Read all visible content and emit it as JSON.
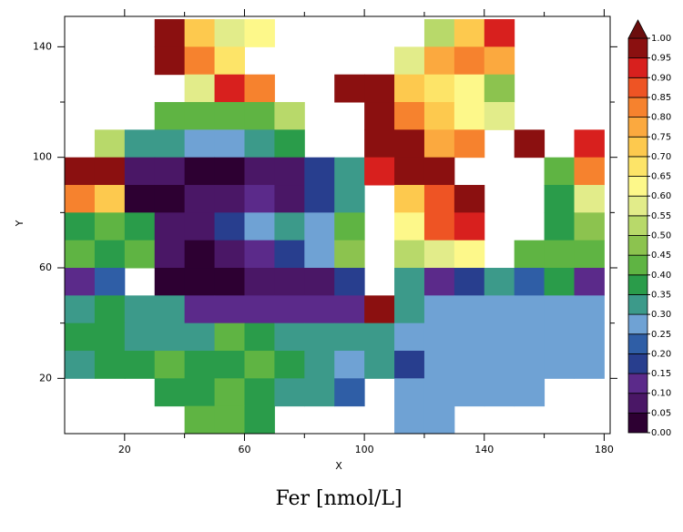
{
  "chart_data": {
    "type": "heatmap",
    "title": "Fer [nmol/L]",
    "x_label": "X",
    "y_label": "Y",
    "xlim": [
      0,
      182
    ],
    "ylim": [
      0,
      151
    ],
    "xticks": [
      20,
      60,
      100,
      140,
      180
    ],
    "xminor": [
      40,
      80,
      120,
      160
    ],
    "yticks": [
      20,
      60,
      100,
      140
    ],
    "yminor": [
      40,
      80,
      120
    ],
    "x": [
      5,
      15,
      25,
      35,
      45,
      55,
      65,
      75,
      85,
      95,
      105,
      115,
      125,
      135,
      145,
      155,
      165,
      175
    ],
    "y": [
      145,
      135,
      125,
      115,
      105,
      95,
      85,
      75,
      65,
      55,
      45,
      35,
      25,
      15,
      5
    ],
    "z": [
      [
        null,
        null,
        null,
        0.95,
        0.7,
        0.55,
        0.6,
        null,
        null,
        null,
        null,
        null,
        0.5,
        0.7,
        0.9,
        null,
        null,
        null
      ],
      [
        null,
        null,
        null,
        0.95,
        0.8,
        0.65,
        null,
        null,
        null,
        null,
        null,
        0.55,
        0.75,
        0.8,
        0.75,
        null,
        null,
        null
      ],
      [
        null,
        null,
        null,
        null,
        0.55,
        0.9,
        0.8,
        null,
        null,
        0.95,
        0.95,
        0.7,
        0.65,
        0.6,
        0.45,
        null,
        null,
        null
      ],
      [
        null,
        null,
        null,
        0.4,
        0.4,
        0.4,
        0.4,
        0.5,
        null,
        null,
        0.95,
        0.8,
        0.7,
        0.6,
        0.55,
        null,
        null,
        null
      ],
      [
        null,
        0.5,
        0.3,
        0.3,
        0.25,
        0.25,
        0.3,
        0.35,
        null,
        null,
        0.95,
        0.95,
        0.75,
        0.8,
        null,
        0.95,
        null,
        0.9
      ],
      [
        0.95,
        0.95,
        0.05,
        0.05,
        0.0,
        0.0,
        0.05,
        0.05,
        0.15,
        0.3,
        0.9,
        0.95,
        0.95,
        null,
        null,
        null,
        0.4,
        0.8
      ],
      [
        0.8,
        0.7,
        0.0,
        0.0,
        0.05,
        0.05,
        0.1,
        0.05,
        0.15,
        0.3,
        null,
        0.7,
        0.85,
        0.95,
        null,
        null,
        0.35,
        0.55
      ],
      [
        0.35,
        0.4,
        0.35,
        0.05,
        0.05,
        0.15,
        0.25,
        0.3,
        0.25,
        0.4,
        null,
        0.6,
        0.85,
        0.9,
        null,
        null,
        0.35,
        0.45
      ],
      [
        0.4,
        0.35,
        0.4,
        0.05,
        0.0,
        0.05,
        0.1,
        0.15,
        0.25,
        0.45,
        null,
        0.5,
        0.55,
        0.6,
        null,
        0.4,
        0.4,
        0.4
      ],
      [
        0.1,
        0.2,
        null,
        0.0,
        0.0,
        0.0,
        0.05,
        0.05,
        0.05,
        0.15,
        null,
        0.3,
        0.1,
        0.15,
        0.3,
        0.2,
        0.35,
        0.1
      ],
      [
        0.3,
        0.35,
        0.3,
        0.3,
        0.1,
        0.1,
        0.1,
        0.1,
        0.1,
        0.1,
        0.95,
        0.3,
        0.25,
        0.25,
        0.25,
        0.25,
        0.25,
        0.25
      ],
      [
        0.35,
        0.35,
        0.3,
        0.3,
        0.3,
        0.4,
        0.35,
        0.3,
        0.3,
        0.3,
        0.3,
        0.25,
        0.25,
        0.25,
        0.25,
        0.25,
        0.25,
        0.25
      ],
      [
        0.3,
        0.35,
        0.35,
        0.4,
        0.35,
        0.35,
        0.4,
        0.35,
        0.3,
        0.25,
        0.3,
        0.15,
        0.25,
        0.25,
        0.25,
        0.25,
        0.25,
        0.25
      ],
      [
        null,
        null,
        null,
        0.35,
        0.35,
        0.4,
        0.35,
        0.3,
        0.3,
        0.2,
        null,
        0.25,
        0.25,
        0.25,
        0.25,
        0.25,
        null,
        null
      ],
      [
        null,
        null,
        null,
        null,
        0.4,
        0.4,
        0.35,
        null,
        null,
        null,
        null,
        0.25,
        0.25,
        null,
        null,
        null,
        null,
        null
      ]
    ],
    "colorbar": {
      "ticks": [
        {
          "value": 0,
          "label": "0.00"
        },
        {
          "value": 0.05,
          "label": "0.05"
        },
        {
          "value": 0.1,
          "label": "0.10"
        },
        {
          "value": 0.15,
          "label": "0.15"
        },
        {
          "value": 0.2,
          "label": "0.20"
        },
        {
          "value": 0.25,
          "label": "0.25"
        },
        {
          "value": 0.3,
          "label": "0.30"
        },
        {
          "value": 0.35,
          "label": "0.35"
        },
        {
          "value": 0.4,
          "label": "0.40"
        },
        {
          "value": 0.45,
          "label": "0.45"
        },
        {
          "value": 0.5,
          "label": "0.50"
        },
        {
          "value": 0.55,
          "label": "0.55"
        },
        {
          "value": 0.6,
          "label": "0.60"
        },
        {
          "value": 0.65,
          "label": "0.65"
        },
        {
          "value": 0.7,
          "label": "0.70"
        },
        {
          "value": 0.75,
          "label": "0.75"
        },
        {
          "value": 0.8,
          "label": "0.80"
        },
        {
          "value": 0.85,
          "label": "0.85"
        },
        {
          "value": 0.9,
          "label": "0.90"
        },
        {
          "value": 0.95,
          "label": "0.95"
        },
        {
          "value": 1,
          "label": "1.00"
        }
      ],
      "colors": [
        "#2d0032",
        "#4a1766",
        "#5b2a8a",
        "#283e8e",
        "#2f5ea6",
        "#6fa2d4",
        "#3c9a8a",
        "#2a9c4a",
        "#5fb443",
        "#8cc34f",
        "#b8d96a",
        "#e2ec8a",
        "#fdf88a",
        "#fde468",
        "#fdc94e",
        "#fba93f",
        "#f6822e",
        "#ee5424",
        "#d8201e",
        "#8b1010"
      ],
      "over_color": "#6b0d0d"
    }
  }
}
